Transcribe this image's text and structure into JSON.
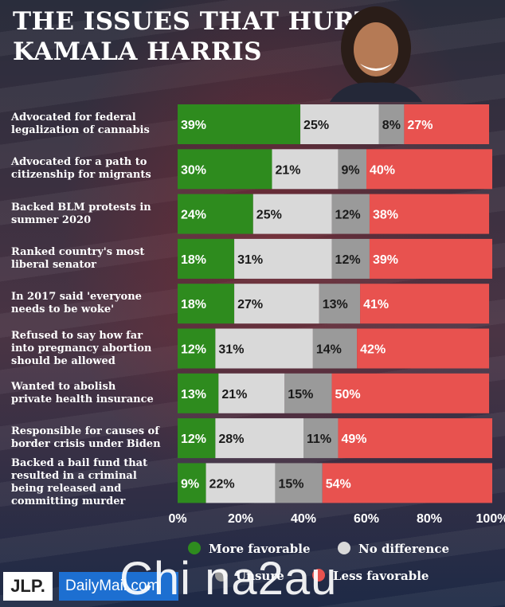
{
  "title_line1": "THE ISSUES THAT HURT",
  "title_line2": "KAMALA HARRIS",
  "chart_data": {
    "type": "bar",
    "orientation": "horizontal",
    "stacked": true,
    "categories": [
      "Advocated for federal legalization of cannabis",
      "Advocated for a path to citizenship for migrants",
      "Backed BLM protests in summer 2020",
      "Ranked country's most liberal senator",
      "In 2017 said 'everyone needs to be woke'",
      "Refused to say how far into pregnancy abortion should be allowed",
      "Wanted to abolish private health insurance",
      "Responsible for causes of border crisis under Biden",
      "Backed a bail fund that resulted in a criminal being released and committing murder"
    ],
    "label_lines": [
      [
        "Advocated for federal",
        "legalization of cannabis"
      ],
      [
        "Advocated for a path to",
        "citizenship for migrants"
      ],
      [
        "Backed BLM protests in",
        "summer 2020"
      ],
      [
        "Ranked country's most",
        "liberal senator"
      ],
      [
        "In 2017 said 'everyone",
        "needs to be woke'"
      ],
      [
        "Refused to say how far",
        "into pregnancy abortion",
        "should be allowed"
      ],
      [
        "Wanted to abolish",
        "private health insurance"
      ],
      [
        "Responsible for causes of",
        "border crisis under Biden"
      ],
      [
        "Backed a bail fund that",
        "resulted in a criminal",
        "being released and",
        "committing murder"
      ]
    ],
    "series": [
      {
        "name": "More favorable",
        "color": "#2e8b1e",
        "values": [
          39,
          30,
          24,
          18,
          18,
          12,
          13,
          12,
          9
        ]
      },
      {
        "name": "No difference",
        "color": "#d9d9d9",
        "values": [
          25,
          21,
          25,
          31,
          27,
          31,
          21,
          28,
          22
        ]
      },
      {
        "name": "Unsure",
        "color": "#9a9a9a",
        "values": [
          8,
          9,
          12,
          12,
          13,
          14,
          15,
          11,
          15
        ]
      },
      {
        "name": "Less favorable",
        "color": "#e8524f",
        "values": [
          27,
          40,
          38,
          39,
          41,
          42,
          50,
          49,
          54
        ]
      }
    ],
    "value_suffix": "%",
    "x_ticks": [
      "0%",
      "20%",
      "40%",
      "60%",
      "80%",
      "100%"
    ],
    "xlim": [
      0,
      100
    ],
    "legend_position": "bottom"
  },
  "legend": {
    "more_favorable": "More favorable",
    "no_difference": "No difference",
    "unsure": "Unsure",
    "less_favorable": "Less favorable"
  },
  "logos": {
    "jlp": "JLP.",
    "daily_mail": "DailyMail.com"
  },
  "watermark": "Chi na2au"
}
